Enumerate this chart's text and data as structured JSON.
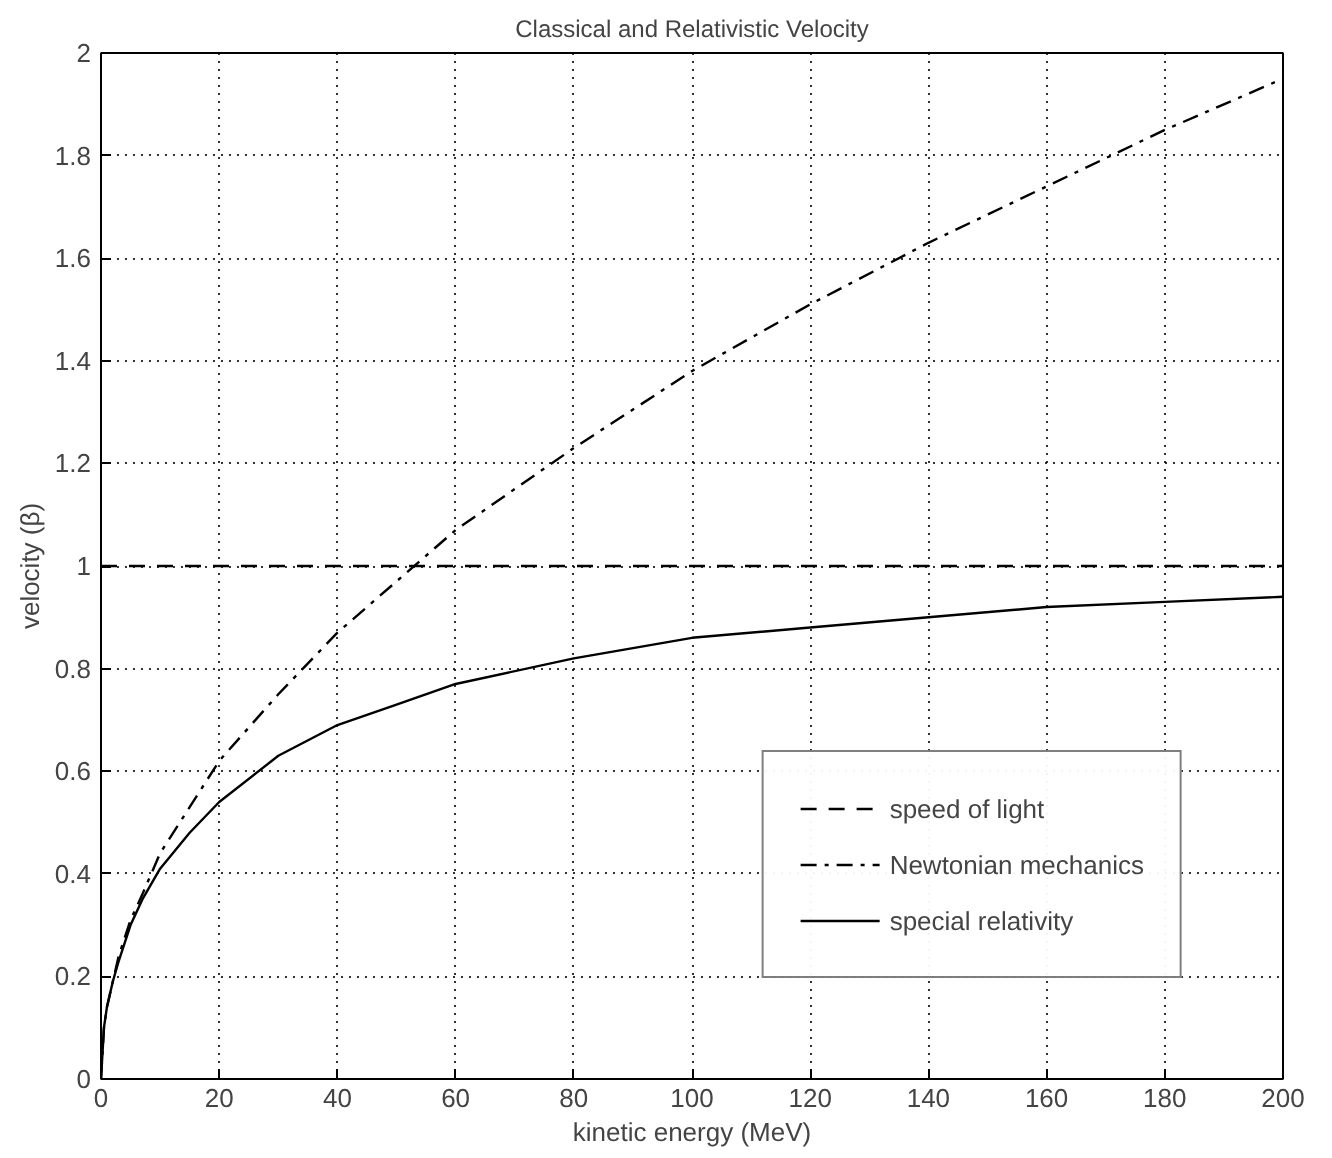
{
  "chart_data": {
    "type": "line",
    "title": "Classical and Relativistic Velocity",
    "xlabel": "kinetic energy (MeV)",
    "ylabel": "velocity (β)",
    "x": [
      0,
      0.5,
      1,
      2,
      3,
      5,
      7,
      10,
      15,
      20,
      30,
      40,
      50,
      60,
      80,
      100,
      120,
      140,
      160,
      180,
      200
    ],
    "series": [
      {
        "name": "speed of light",
        "color": "#000000",
        "line_style": "dashed",
        "values": [
          1,
          1,
          1,
          1,
          1,
          1,
          1,
          1,
          1,
          1,
          1,
          1,
          1,
          1,
          1,
          1,
          1,
          1,
          1,
          1,
          1
        ]
      },
      {
        "name": "Newtonian mechanics",
        "color": "#000000",
        "line_style": "dashdot",
        "values": [
          0,
          0.1,
          0.14,
          0.19,
          0.24,
          0.31,
          0.36,
          0.44,
          0.53,
          0.62,
          0.75,
          0.87,
          0.97,
          1.07,
          1.23,
          1.38,
          1.51,
          1.63,
          1.74,
          1.85,
          1.95
        ]
      },
      {
        "name": "special relativity",
        "color": "#000000",
        "line_style": "solid",
        "values": [
          0,
          0.1,
          0.14,
          0.19,
          0.23,
          0.3,
          0.35,
          0.41,
          0.48,
          0.54,
          0.63,
          0.69,
          0.73,
          0.77,
          0.82,
          0.86,
          0.88,
          0.9,
          0.92,
          0.93,
          0.94
        ]
      }
    ],
    "xlim": [
      0,
      200
    ],
    "ylim": [
      0,
      2
    ],
    "xticks": [
      0,
      20,
      40,
      60,
      80,
      100,
      120,
      140,
      160,
      180,
      200
    ],
    "yticks": [
      0,
      0.2,
      0.4,
      0.6,
      0.8,
      1,
      1.2,
      1.4,
      1.6,
      1.8,
      2
    ],
    "grid": true,
    "legend": "bottom right",
    "marker": "none"
  }
}
